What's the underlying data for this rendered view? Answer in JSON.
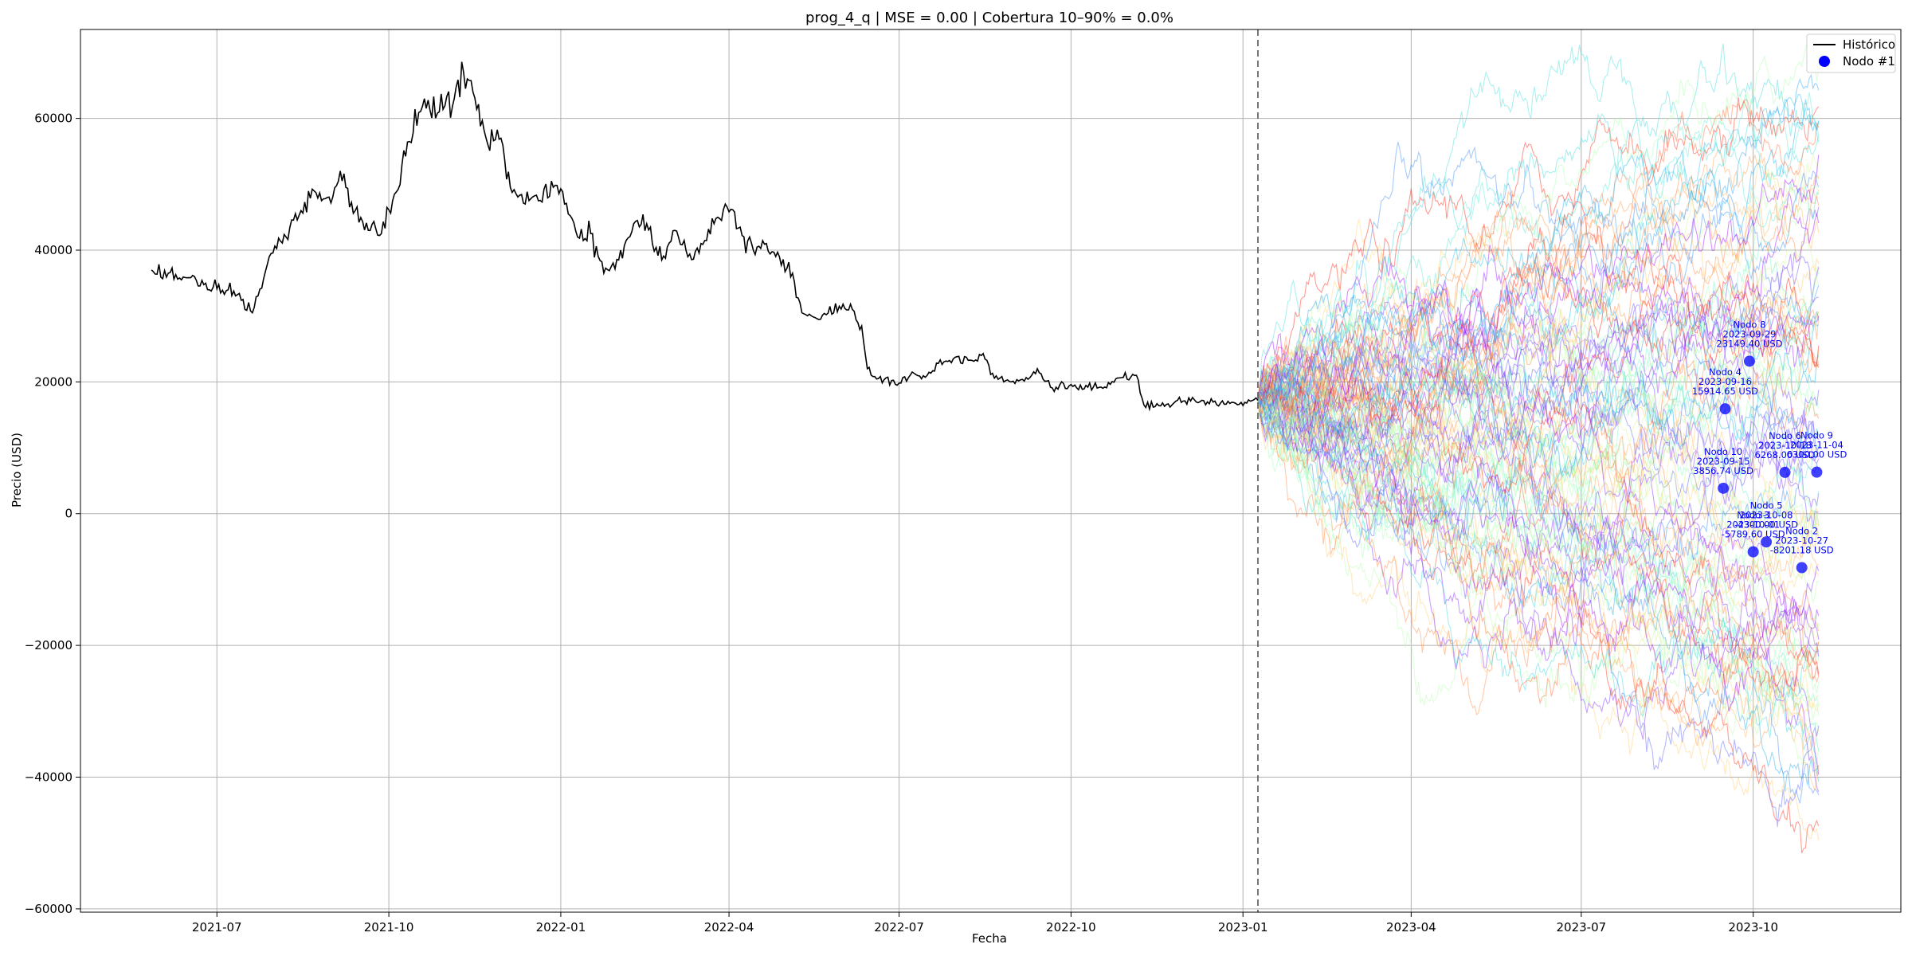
{
  "chart_data": {
    "type": "line",
    "title": "prog_4_q | MSE = 0.00 | Cobertura 10–90% = 0.0%",
    "xlabel": "Fecha",
    "ylabel": "Precio (USD)",
    "xlim": [
      "2021-04-19",
      "2023-12-19"
    ],
    "ylim": [
      -60500,
      73500
    ],
    "grid": true,
    "legend_position": "upper-right",
    "x_ticks": [
      {
        "date": "2021-07-01",
        "label": "2021-07"
      },
      {
        "date": "2021-10-01",
        "label": "2021-10"
      },
      {
        "date": "2022-01-01",
        "label": "2022-01"
      },
      {
        "date": "2022-04-01",
        "label": "2022-04"
      },
      {
        "date": "2022-07-01",
        "label": "2022-07"
      },
      {
        "date": "2022-10-01",
        "label": "2022-10"
      },
      {
        "date": "2023-01-01",
        "label": "2023-01"
      },
      {
        "date": "2023-04-01",
        "label": "2023-04"
      },
      {
        "date": "2023-07-01",
        "label": "2023-07"
      },
      {
        "date": "2023-10-01",
        "label": "2023-10"
      }
    ],
    "y_ticks": [
      {
        "value": 60000,
        "label": "60000"
      },
      {
        "value": 40000,
        "label": "40000"
      },
      {
        "value": 20000,
        "label": "20000"
      },
      {
        "value": 0,
        "label": "0"
      },
      {
        "value": -20000,
        "label": "−20000"
      },
      {
        "value": -40000,
        "label": "−40000"
      },
      {
        "value": -60000,
        "label": "−60000"
      }
    ],
    "forecast_start": "2023-01-09",
    "forecast_end": "2023-11-05",
    "historical": {
      "name": "Histórico",
      "color": "#000000",
      "points": [
        [
          "2021-05-27",
          37000
        ],
        [
          "2021-06-05",
          36500
        ],
        [
          "2021-06-12",
          35500
        ],
        [
          "2021-06-19",
          36000
        ],
        [
          "2021-06-26",
          34000
        ],
        [
          "2021-07-03",
          33500
        ],
        [
          "2021-07-10",
          33800
        ],
        [
          "2021-07-20",
          30500
        ],
        [
          "2021-07-30",
          39500
        ],
        [
          "2021-08-07",
          42000
        ],
        [
          "2021-08-15",
          46000
        ],
        [
          "2021-08-22",
          49000
        ],
        [
          "2021-08-29",
          48000
        ],
        [
          "2021-09-06",
          50500
        ],
        [
          "2021-09-13",
          46000
        ],
        [
          "2021-09-20",
          43000
        ],
        [
          "2021-09-27",
          42500
        ],
        [
          "2021-10-04",
          48500
        ],
        [
          "2021-10-12",
          56500
        ],
        [
          "2021-10-20",
          63000
        ],
        [
          "2021-10-28",
          61000
        ],
        [
          "2021-11-05",
          63000
        ],
        [
          "2021-11-10",
          67000
        ],
        [
          "2021-11-15",
          64000
        ],
        [
          "2021-11-22",
          57000
        ],
        [
          "2021-11-30",
          57000
        ],
        [
          "2021-12-05",
          49500
        ],
        [
          "2021-12-13",
          47000
        ],
        [
          "2021-12-20",
          47500
        ],
        [
          "2021-12-27",
          50500
        ],
        [
          "2022-01-03",
          47000
        ],
        [
          "2022-01-10",
          42000
        ],
        [
          "2022-01-17",
          42500
        ],
        [
          "2022-01-24",
          36500
        ],
        [
          "2022-02-01",
          38500
        ],
        [
          "2022-02-09",
          44000
        ],
        [
          "2022-02-16",
          44000
        ],
        [
          "2022-02-24",
          38500
        ],
        [
          "2022-03-03",
          43000
        ],
        [
          "2022-03-10",
          39000
        ],
        [
          "2022-03-17",
          41000
        ],
        [
          "2022-03-24",
          44000
        ],
        [
          "2022-03-30",
          47000
        ],
        [
          "2022-04-07",
          43500
        ],
        [
          "2022-04-14",
          40000
        ],
        [
          "2022-04-21",
          41000
        ],
        [
          "2022-04-28",
          39000
        ],
        [
          "2022-05-05",
          36500
        ],
        [
          "2022-05-10",
          30500
        ],
        [
          "2022-05-20",
          29500
        ],
        [
          "2022-05-30",
          31500
        ],
        [
          "2022-06-06",
          31000
        ],
        [
          "2022-06-11",
          28500
        ],
        [
          "2022-06-14",
          22000
        ],
        [
          "2022-06-20",
          20500
        ],
        [
          "2022-06-30",
          19500
        ],
        [
          "2022-07-08",
          21500
        ],
        [
          "2022-07-15",
          20700
        ],
        [
          "2022-07-22",
          22800
        ],
        [
          "2022-07-30",
          23500
        ],
        [
          "2022-08-08",
          23300
        ],
        [
          "2022-08-15",
          24300
        ],
        [
          "2022-08-20",
          21300
        ],
        [
          "2022-08-30",
          20000
        ],
        [
          "2022-09-08",
          20400
        ],
        [
          "2022-09-13",
          22000
        ],
        [
          "2022-09-20",
          19200
        ],
        [
          "2022-09-30",
          19400
        ],
        [
          "2022-10-10",
          19200
        ],
        [
          "2022-10-20",
          19100
        ],
        [
          "2022-10-29",
          20700
        ],
        [
          "2022-11-05",
          21000
        ],
        [
          "2022-11-09",
          16500
        ],
        [
          "2022-11-20",
          16300
        ],
        [
          "2022-11-30",
          17100
        ],
        [
          "2022-12-10",
          17200
        ],
        [
          "2022-12-20",
          16800
        ],
        [
          "2022-12-30",
          16600
        ],
        [
          "2023-01-09",
          17200
        ]
      ]
    },
    "simulation_paths": {
      "count": 100,
      "start_value": 17200,
      "opacity": 0.45,
      "colormap": "rainbow",
      "endpoint_range": [
        -45000,
        66000
      ]
    },
    "nodes": {
      "legend_name": "Nodo #1",
      "color": "#0000ff",
      "points": [
        {
          "label": "Nodo 8",
          "date": "2023-09-29",
          "value": 23149.4,
          "value_label": "23149.40 USD"
        },
        {
          "label": "Nodo 4",
          "date": "2023-09-16",
          "value": 15914.65,
          "value_label": "15914.65 USD"
        },
        {
          "label": "Nodo 10",
          "date": "2023-09-15",
          "value": 3856.74,
          "value_label": "3856.74 USD"
        },
        {
          "label": "Nodo 6",
          "date": "2023-10-18",
          "value": 6268.0,
          "value_label": "6268.00 USD"
        },
        {
          "label": "Nodo 9",
          "date": "2023-11-04",
          "value": 6300.0,
          "value_label": "6300.00 USD"
        },
        {
          "label": "Nodo 3",
          "date": "2023-10-01",
          "value": -5789.6,
          "value_label": "-5789.60 USD"
        },
        {
          "label": "Nodo 5",
          "date": "2023-10-08",
          "value": -4300.0,
          "value_label": "-4300.00 USD"
        },
        {
          "label": "Nodo 2",
          "date": "2023-10-27",
          "value": -8201.18,
          "value_label": "-8201.18 USD"
        }
      ]
    }
  }
}
